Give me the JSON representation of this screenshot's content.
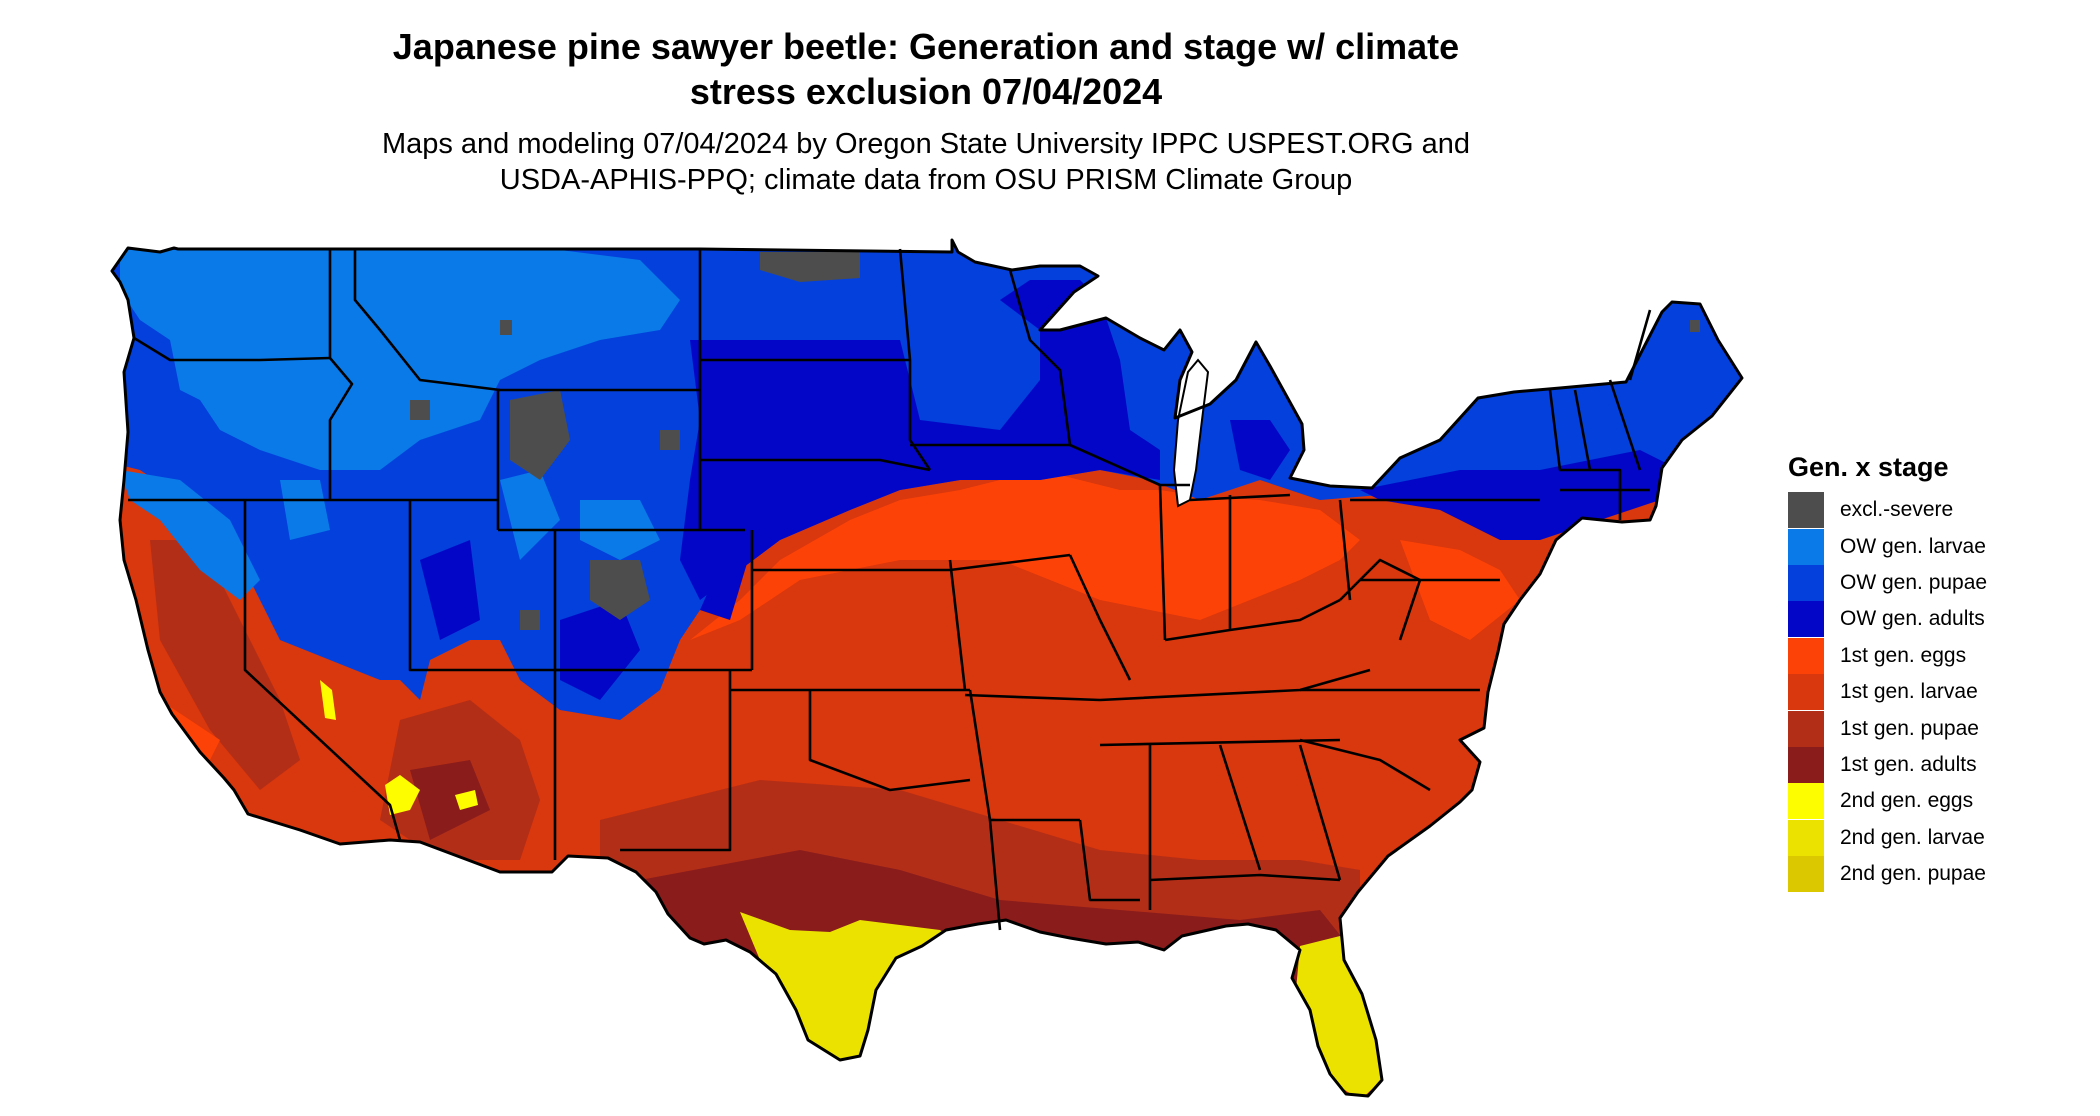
{
  "header": {
    "title_line1": "Japanese pine sawyer beetle: Generation and stage w/ climate",
    "title_line2": "stress exclusion 07/04/2024",
    "subtitle_line1": "Maps and modeling 07/04/2024 by Oregon State University IPPC USPEST.ORG and",
    "subtitle_line2": "USDA-APHIS-PPQ; climate data from OSU PRISM Climate Group"
  },
  "legend": {
    "title": "Gen. x stage",
    "items": [
      {
        "label": "excl.-severe",
        "color": "#4d4d4d"
      },
      {
        "label": "OW gen. larvae",
        "color": "#0a7ae8"
      },
      {
        "label": "OW gen. pupae",
        "color": "#0340dc"
      },
      {
        "label": "OW gen. adults",
        "color": "#0306c6"
      },
      {
        "label": "1st gen. eggs",
        "color": "#fc4207"
      },
      {
        "label": "1st gen. larvae",
        "color": "#d9370d"
      },
      {
        "label": "1st gen. pupae",
        "color": "#b32e16"
      },
      {
        "label": "1st gen. adults",
        "color": "#8a1c1c"
      },
      {
        "label": "2nd gen. eggs",
        "color": "#fdfd00"
      },
      {
        "label": "2nd gen. larvae",
        "color": "#ece200"
      },
      {
        "label": "2nd gen. pupae",
        "color": "#dcc800"
      }
    ]
  }
}
